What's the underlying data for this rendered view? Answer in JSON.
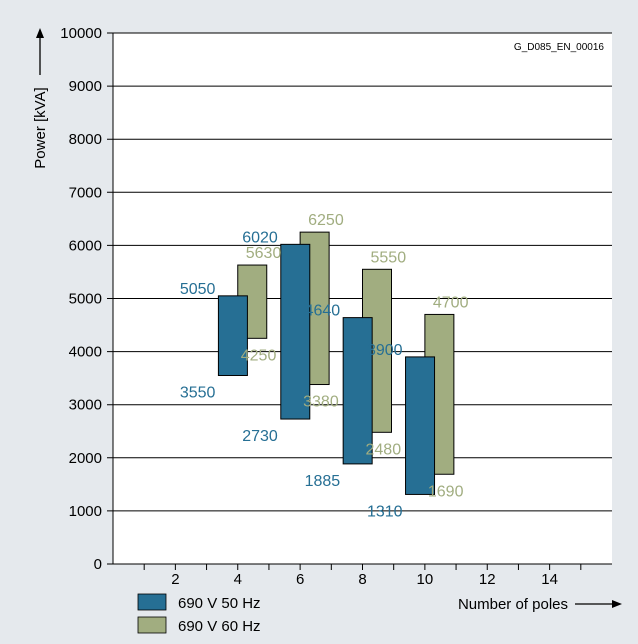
{
  "chart_data": {
    "type": "bar",
    "subtype": "floating-range",
    "code_label": "G_D085_EN_00016",
    "ylabel": "Power [kVA]",
    "xlabel": "Number of poles",
    "ylim": [
      0,
      10000
    ],
    "y_ticks": [
      0,
      1000,
      2000,
      3000,
      4000,
      5000,
      6000,
      7000,
      8000,
      9000,
      10000
    ],
    "xlim": [
      0,
      16
    ],
    "x_ticks": [
      2,
      4,
      6,
      8,
      10,
      12,
      14
    ],
    "grid": "horizontal",
    "series": [
      {
        "name": "690 V 50 Hz",
        "color": "#266f94",
        "points": [
          {
            "poles": 4,
            "low": 3550,
            "high": 5050
          },
          {
            "poles": 6,
            "low": 2730,
            "high": 6020
          },
          {
            "poles": 8,
            "low": 1885,
            "high": 4640
          },
          {
            "poles": 10,
            "low": 1310,
            "high": 3900
          }
        ]
      },
      {
        "name": "690 V 60 Hz",
        "color": "#a1ad80",
        "points": [
          {
            "poles": 4,
            "low": 4250,
            "high": 5630
          },
          {
            "poles": 6,
            "low": 3380,
            "high": 6250
          },
          {
            "poles": 8,
            "low": 2480,
            "high": 5550
          },
          {
            "poles": 10,
            "low": 1690,
            "high": 4700
          }
        ]
      }
    ],
    "legend_position": "bottom-left"
  }
}
